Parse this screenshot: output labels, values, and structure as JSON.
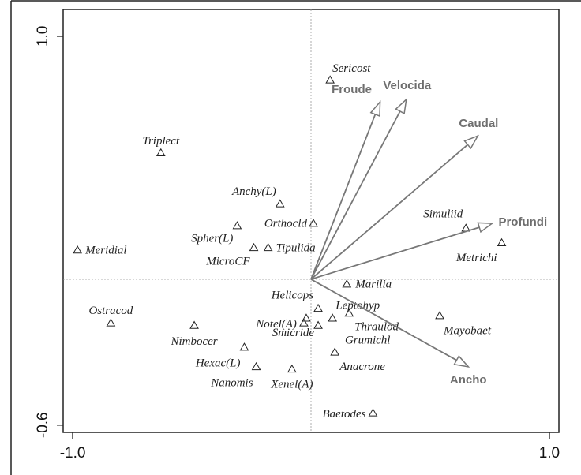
{
  "chart_data": {
    "type": "biplot",
    "xlim": [
      -1.04,
      1.04
    ],
    "ylim": [
      -0.63,
      1.11
    ],
    "xticks": [
      {
        "value": -1.0,
        "label": "-1.0"
      },
      {
        "value": 1.0,
        "label": "1.0"
      }
    ],
    "yticks": [
      -0.6,
      {
        "value": 1.0,
        "label": "1.0"
      }
    ],
    "point_color": "#222222",
    "arrow_color": "#777777",
    "points": {
      "names": [
        "Sericost",
        "Triplect",
        "Anchy(L)",
        "Orthocld",
        "Spher(L)",
        "MicroCF",
        "Tipulida",
        "Meridial",
        "Simuliid",
        "Metrichi",
        "Marilia",
        "Helicops",
        "Leptohyp",
        "Thraulod",
        "Notel(A)",
        "Smicride",
        "Grumichl",
        "Anacrone",
        "Mayobaet",
        "Ostracod",
        "Nimbocer",
        "Hexac(L)",
        "Nanomis",
        "Xenel(A)",
        "Baetodes"
      ],
      "x": [
        0.08,
        -0.63,
        -0.13,
        0.01,
        -0.31,
        -0.24,
        -0.18,
        -0.98,
        0.65,
        0.8,
        0.15,
        0.03,
        0.16,
        0.09,
        -0.03,
        0.03,
        -0.02,
        0.1,
        0.54,
        -0.84,
        -0.49,
        -0.28,
        -0.23,
        -0.08,
        0.26
      ],
      "y": [
        0.82,
        0.52,
        0.31,
        0.23,
        0.22,
        0.13,
        0.13,
        0.12,
        0.21,
        0.15,
        -0.02,
        -0.12,
        -0.14,
        -0.16,
        -0.18,
        -0.19,
        -0.16,
        -0.3,
        -0.15,
        -0.18,
        -0.19,
        -0.28,
        -0.36,
        -0.37,
        -0.55
      ]
    },
    "vectors": {
      "names": [
        "Froude",
        "Velocida",
        "Caudal",
        "Profundi",
        "Ancho"
      ],
      "x": [
        0.29,
        0.4,
        0.7,
        0.76,
        0.66
      ],
      "y": [
        0.73,
        0.74,
        0.59,
        0.23,
        -0.36
      ]
    }
  }
}
